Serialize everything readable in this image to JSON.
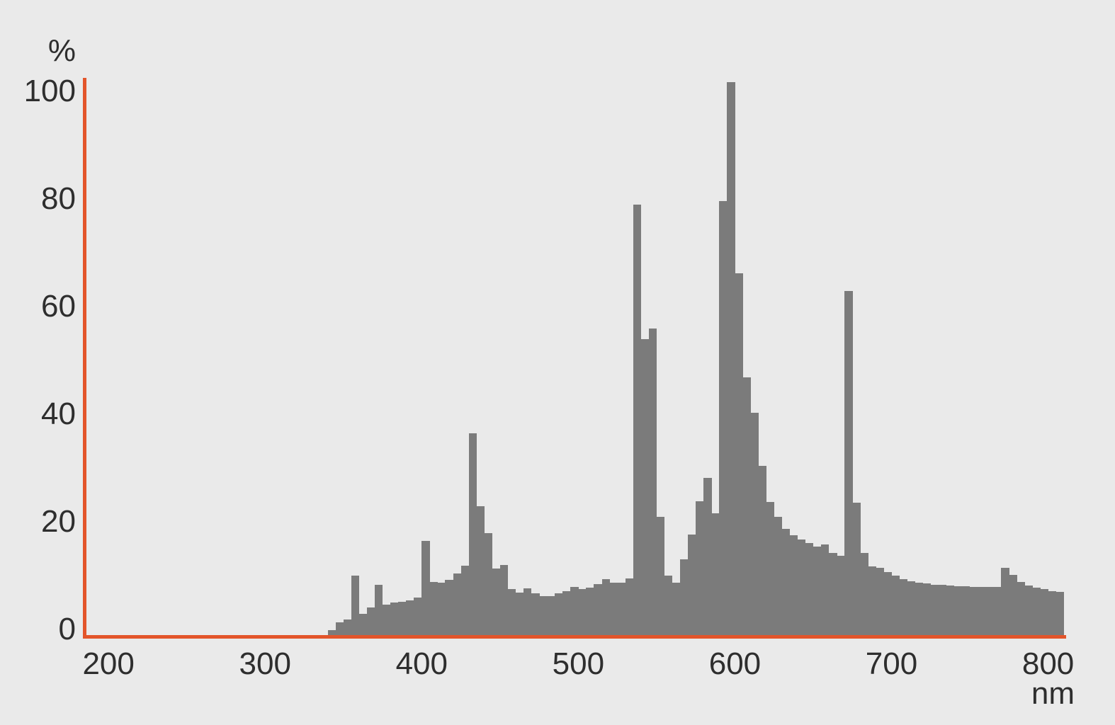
{
  "chart_data": {
    "type": "bar",
    "title": "",
    "xlabel": "nm",
    "ylabel": "%",
    "x_ticks": [
      200,
      300,
      400,
      500,
      600,
      700,
      800
    ],
    "y_ticks": [
      0,
      20,
      40,
      60,
      80,
      100
    ],
    "xlim": [
      185,
      811.5
    ],
    "ylim": [
      0,
      103.6
    ],
    "grid": false,
    "legend_position": "none",
    "bin_width_nm": 5,
    "bars": [
      [
        340,
        0.9
      ],
      [
        345,
        2.4
      ],
      [
        350,
        2.9
      ],
      [
        355,
        11
      ],
      [
        360,
        4
      ],
      [
        365,
        5.1
      ],
      [
        370,
        9.3
      ],
      [
        375,
        5.6
      ],
      [
        380,
        6
      ],
      [
        385,
        6.2
      ],
      [
        390,
        6.5
      ],
      [
        395,
        7
      ],
      [
        400,
        17.5
      ],
      [
        405,
        9.9
      ],
      [
        410,
        9.7
      ],
      [
        415,
        10.2
      ],
      [
        420,
        11.4
      ],
      [
        425,
        12.9
      ],
      [
        430,
        37.5
      ],
      [
        435,
        24
      ],
      [
        440,
        19
      ],
      [
        445,
        12.4
      ],
      [
        450,
        13
      ],
      [
        455,
        8.6
      ],
      [
        460,
        7.9
      ],
      [
        465,
        8.7
      ],
      [
        470,
        7.7
      ],
      [
        475,
        7.2
      ],
      [
        480,
        7.2
      ],
      [
        485,
        7.7
      ],
      [
        490,
        8.1
      ],
      [
        495,
        9
      ],
      [
        500,
        8.6
      ],
      [
        505,
        8.8
      ],
      [
        510,
        9.5
      ],
      [
        515,
        10.4
      ],
      [
        520,
        9.7
      ],
      [
        525,
        9.7
      ],
      [
        530,
        10.5
      ],
      [
        535,
        80
      ],
      [
        540,
        55
      ],
      [
        545,
        57
      ],
      [
        550,
        22
      ],
      [
        555,
        11
      ],
      [
        560,
        9.7
      ],
      [
        565,
        14.1
      ],
      [
        570,
        18.7
      ],
      [
        575,
        24.9
      ],
      [
        580,
        29.2
      ],
      [
        585,
        22.6
      ],
      [
        590,
        80.7
      ],
      [
        595,
        102.8
      ],
      [
        600,
        67.3
      ],
      [
        605,
        47.9
      ],
      [
        610,
        41.3
      ],
      [
        615,
        31.4
      ],
      [
        620,
        24.8
      ],
      [
        625,
        22
      ],
      [
        630,
        19.8
      ],
      [
        635,
        18.5
      ],
      [
        640,
        17.8
      ],
      [
        645,
        17.1
      ],
      [
        650,
        16.5
      ],
      [
        655,
        16.8
      ],
      [
        660,
        15.2
      ],
      [
        665,
        14.7
      ],
      [
        670,
        64
      ],
      [
        675,
        24.6
      ],
      [
        680,
        15.3
      ],
      [
        685,
        12.8
      ],
      [
        690,
        12.5
      ],
      [
        695,
        11.7
      ],
      [
        700,
        11
      ],
      [
        705,
        10.4
      ],
      [
        710,
        10
      ],
      [
        715,
        9.8
      ],
      [
        720,
        9.6
      ],
      [
        725,
        9.4
      ],
      [
        730,
        9.3
      ],
      [
        735,
        9.2
      ],
      [
        740,
        9.1
      ],
      [
        745,
        9.1
      ],
      [
        750,
        9
      ],
      [
        755,
        9
      ],
      [
        760,
        9
      ],
      [
        765,
        9
      ],
      [
        770,
        12.5
      ],
      [
        775,
        11.2
      ],
      [
        780,
        9.9
      ],
      [
        785,
        9.2
      ],
      [
        790,
        8.8
      ],
      [
        795,
        8.5
      ],
      [
        800,
        8.2
      ],
      [
        805,
        8
      ]
    ]
  },
  "colors": {
    "bar": "#7b7b7b",
    "axis": "#e3552b",
    "text": "#2e2e2e",
    "background": "#eaeaea"
  }
}
